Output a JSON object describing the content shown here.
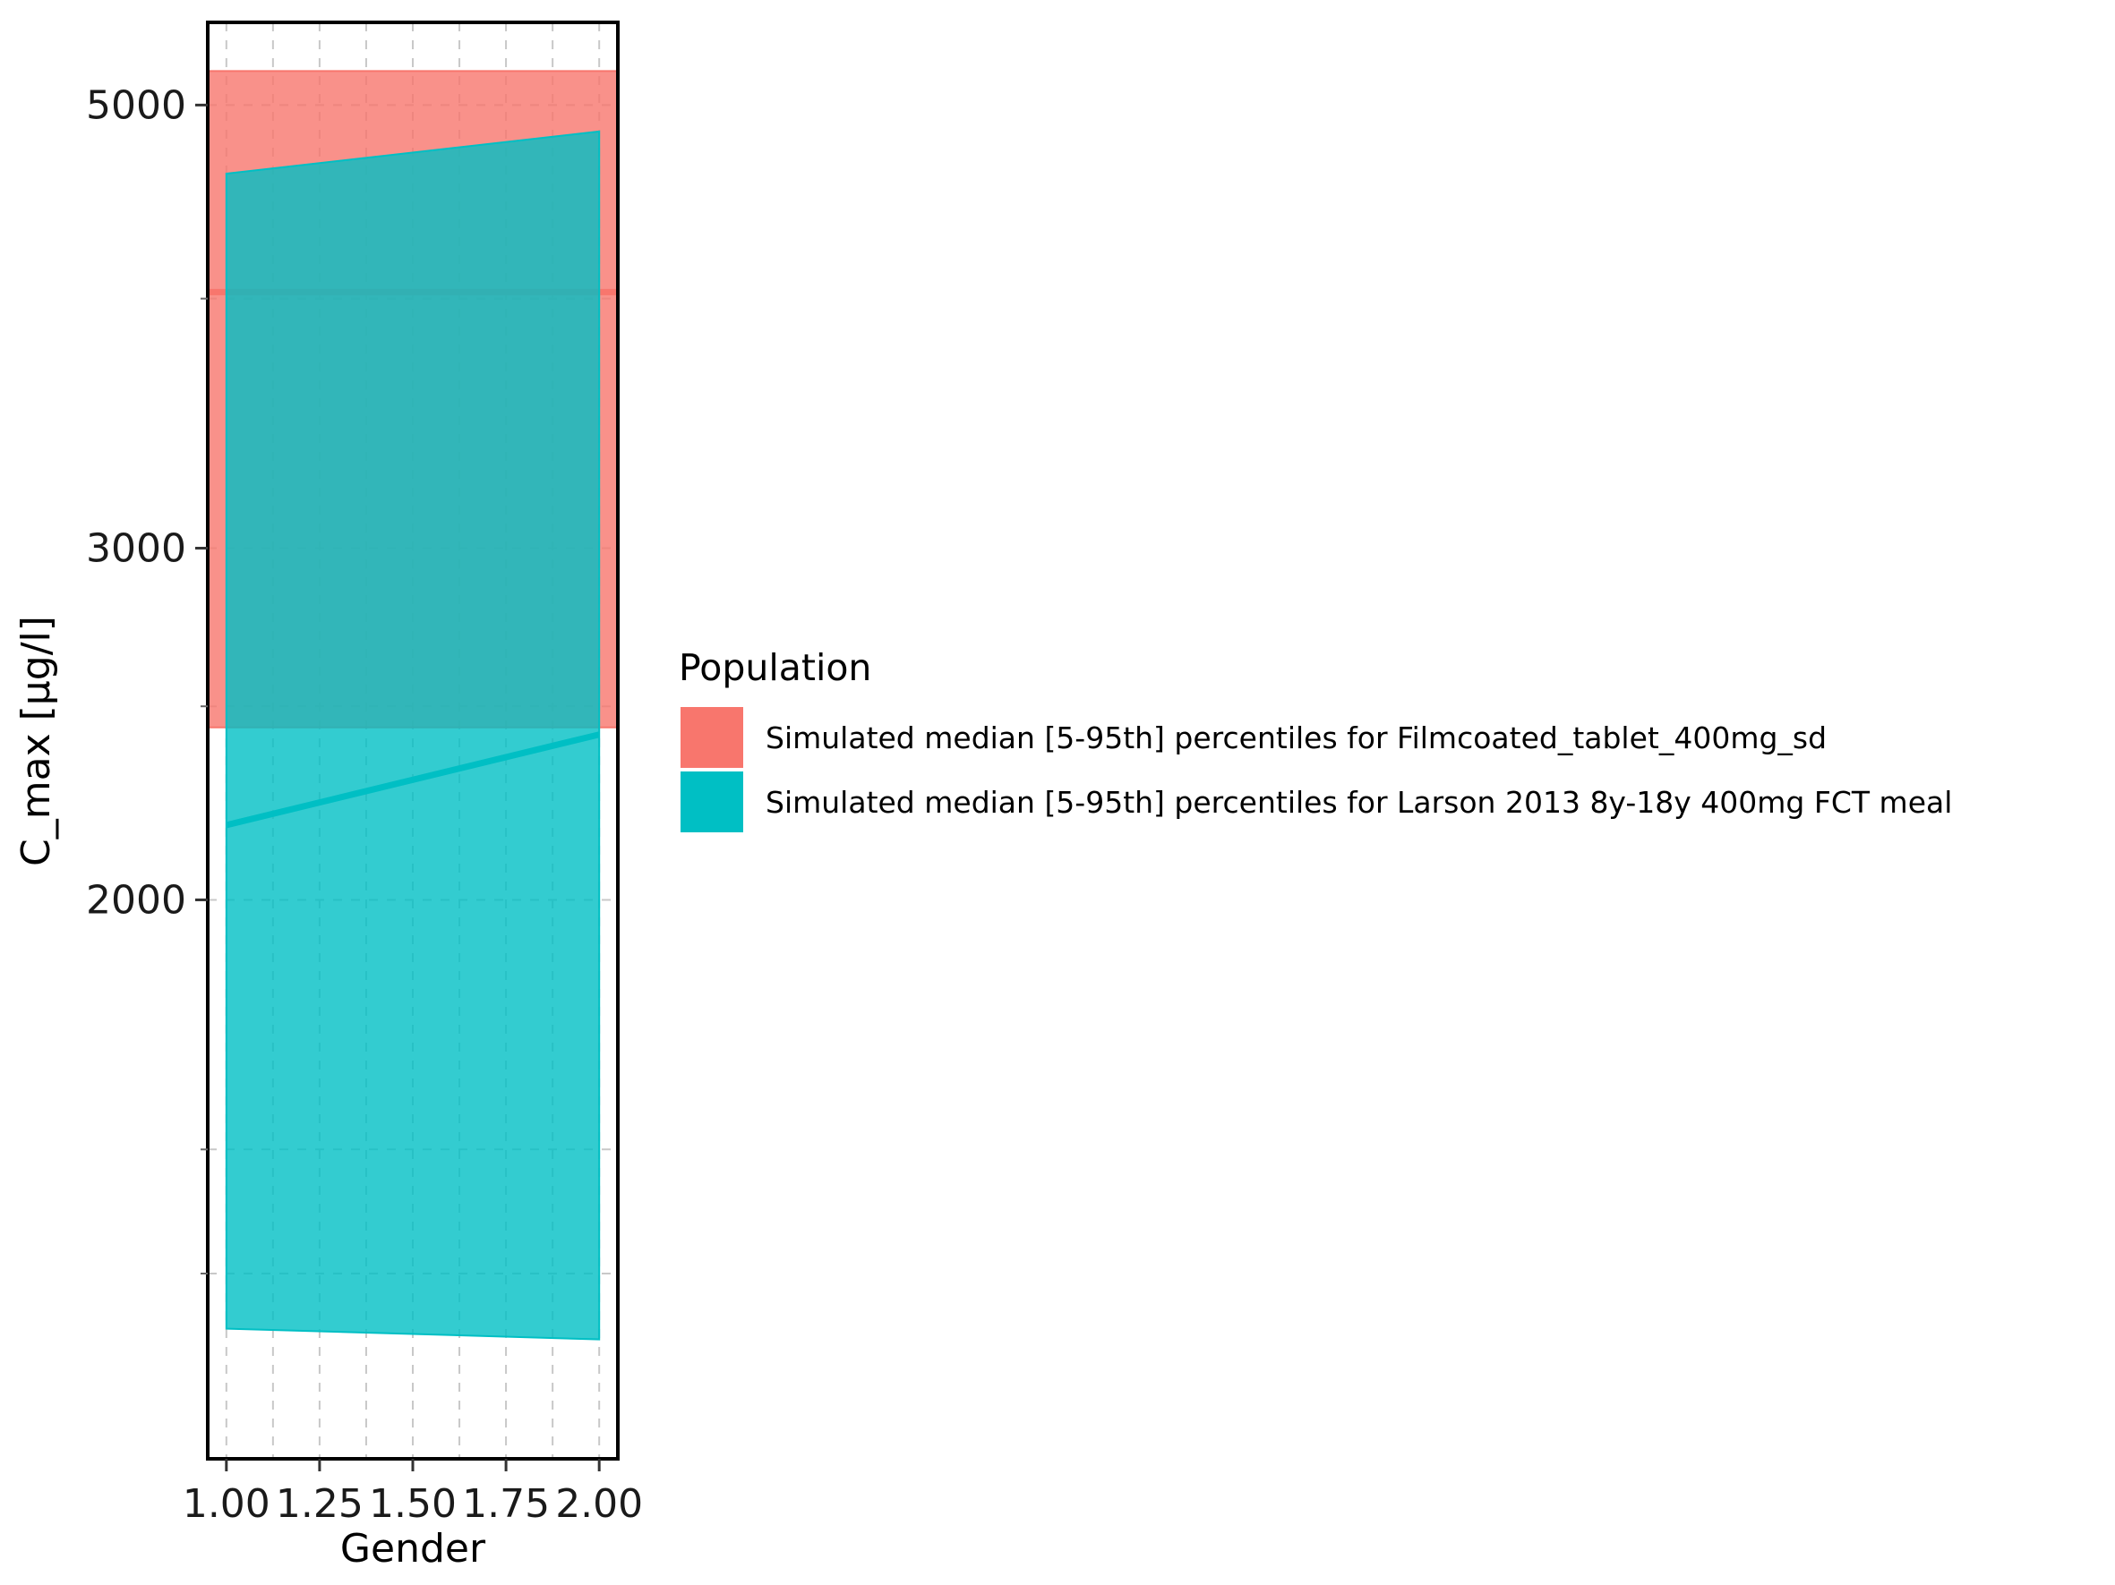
{
  "chart_data": {
    "type": "area",
    "xlabel": "Gender",
    "ylabel": "C_max [µg/l]",
    "x_ticks": [
      "1.00",
      "1.25",
      "1.50",
      "1.75",
      "2.00"
    ],
    "x_tick_values": [
      1.0,
      1.25,
      1.5,
      1.75,
      2.0
    ],
    "y_ticks": [
      "2000",
      "3000",
      "5000"
    ],
    "y_tick_values": [
      2000,
      3000,
      5000
    ],
    "y_scale": "log",
    "xlim": [
      0.95,
      2.05
    ],
    "ylim": [
      1050,
      5500
    ],
    "grid": true,
    "legend_title": "Population",
    "legend_position": "right",
    "series": [
      {
        "name": "Simulated median [5-95th] percentiles for Filmcoated_tablet_400mg_sd",
        "color": "#F8766D",
        "x": [
          0.95,
          2.05
        ],
        "lower": [
          2440,
          2440
        ],
        "median": [
          4030,
          4030
        ],
        "upper": [
          5200,
          5200
        ]
      },
      {
        "name": "Simulated median [5-95th] percentiles for Larson 2013 8y-18y 400mg FCT meal",
        "color": "#00BFC4",
        "x": [
          1.0,
          2.0
        ],
        "lower": [
          1220,
          1205
        ],
        "median": [
          2180,
          2420
        ],
        "upper": [
          4620,
          4850
        ]
      }
    ]
  }
}
